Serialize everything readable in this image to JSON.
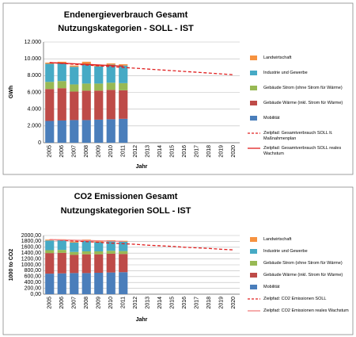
{
  "chart_data": [
    {
      "type": "bar",
      "stacked": true,
      "title": "Endenergieverbrauch Gesamt",
      "subtitle": "Nutzungskategorien - SOLL - IST",
      "y_label": "GWh",
      "x_label": "Jahr",
      "categories": [
        "2005",
        "2006",
        "2007",
        "2008",
        "2009",
        "2010",
        "2011",
        "2012",
        "2013",
        "2014",
        "2015",
        "2016",
        "2017",
        "2018",
        "2019",
        "2020"
      ],
      "ylim": [
        0,
        12000
      ],
      "yticks": [
        0,
        {
          "value": 2000,
          "label": "2.000"
        },
        {
          "value": 4000,
          "label": "4.000"
        },
        {
          "value": 6000,
          "label": "6.000"
        },
        {
          "value": 8000,
          "label": "8.000"
        },
        {
          "value": 10000,
          "label": "10.000"
        },
        {
          "value": 12000,
          "label": "12.000"
        }
      ],
      "grid": true,
      "series": [
        {
          "name": "Mobilität",
          "color": "#4a7ebb",
          "values": [
            2600,
            2650,
            2700,
            2700,
            2750,
            2800,
            2850,
            null,
            null,
            null,
            null,
            null,
            null,
            null,
            null,
            null
          ]
        },
        {
          "name": "Gebäude Wärme (inkl. Strom für Wärme)",
          "color": "#be4b48",
          "values": [
            3800,
            3850,
            3400,
            3500,
            3450,
            3500,
            3400,
            null,
            null,
            null,
            null,
            null,
            null,
            null,
            null,
            null
          ]
        },
        {
          "name": "Gebäude Strom (ohne Strom für Wärme)",
          "color": "#98b954",
          "values": [
            850,
            850,
            850,
            850,
            850,
            850,
            850,
            null,
            null,
            null,
            null,
            null,
            null,
            null,
            null,
            null
          ]
        },
        {
          "name": "Industrie und Gewerbe",
          "color": "#46aac5",
          "values": [
            2150,
            2150,
            2100,
            2350,
            2050,
            2150,
            2100,
            null,
            null,
            null,
            null,
            null,
            null,
            null,
            null,
            null
          ]
        },
        {
          "name": "Landwirtschaft",
          "color": "#f69240",
          "values": [
            150,
            150,
            150,
            250,
            150,
            150,
            150,
            null,
            null,
            null,
            null,
            null,
            null,
            null,
            null,
            null
          ]
        },
        {
          "name": "Zielpfad: Gesamtverbrauch SOLL lt. Maßnahmenplan",
          "type": "line",
          "dashed": true,
          "color": "#e02020",
          "values": [
            9550,
            9450,
            9350,
            9260,
            9160,
            9070,
            8970,
            8880,
            8780,
            8680,
            8590,
            8490,
            8400,
            8300,
            8200,
            8100
          ]
        },
        {
          "name": "Zielpfad: Gesamtverbrauch SOLL reales Wachstum",
          "type": "line",
          "dashed": false,
          "color": "#e02020",
          "values": [
            9550,
            9480,
            9410,
            9340,
            9270,
            9200,
            9130,
            null,
            null,
            null,
            null,
            null,
            null,
            null,
            null,
            null
          ]
        }
      ]
    },
    {
      "type": "bar",
      "stacked": true,
      "title": "CO2 Emissionen Gesamt",
      "subtitle": "Nutzungskategorien SOLL - IST",
      "y_label": "1000 to CO2",
      "x_label": "Jahr",
      "categories": [
        "2005",
        "2006",
        "2007",
        "2008",
        "2009",
        "2010",
        "2011",
        "2012",
        "2013",
        "2014",
        "2015",
        "2016",
        "2017",
        "2018",
        "2019",
        "2020"
      ],
      "ylim": [
        0,
        2000
      ],
      "yticks": [
        {
          "value": 0,
          "label": "0,00"
        },
        {
          "value": 200,
          "label": "200,00"
        },
        {
          "value": 400,
          "label": "400,00"
        },
        {
          "value": 600,
          "label": "600,00"
        },
        {
          "value": 800,
          "label": "800,00"
        },
        {
          "value": 1000,
          "label": "1000,00"
        },
        {
          "value": 1200,
          "label": "1200,00"
        },
        {
          "value": 1400,
          "label": "1400,00"
        },
        {
          "value": 1600,
          "label": "1600,00"
        },
        {
          "value": 1800,
          "label": "1800,00"
        },
        {
          "value": 2000,
          "label": "2000,00"
        }
      ],
      "grid": true,
      "series": [
        {
          "name": "Mobilität",
          "color": "#4a7ebb",
          "values": [
            700,
            710,
            720,
            720,
            730,
            740,
            750,
            null,
            null,
            null,
            null,
            null,
            null,
            null,
            null,
            null
          ]
        },
        {
          "name": "Gebäude Wärme (inkl. Strom für Wärme)",
          "color": "#be4b48",
          "values": [
            700,
            700,
            620,
            640,
            630,
            640,
            620,
            null,
            null,
            null,
            null,
            null,
            null,
            null,
            null,
            null
          ]
        },
        {
          "name": "Gebäude Strom (ohne Strom für Wärme)",
          "color": "#98b954",
          "values": [
            100,
            100,
            100,
            100,
            100,
            100,
            100,
            null,
            null,
            null,
            null,
            null,
            null,
            null,
            null,
            null
          ]
        },
        {
          "name": "Industrie und Gewerbe",
          "color": "#46aac5",
          "values": [
            330,
            330,
            320,
            360,
            310,
            330,
            320,
            null,
            null,
            null,
            null,
            null,
            null,
            null,
            null,
            null
          ]
        },
        {
          "name": "Landwirtschaft",
          "color": "#f69240",
          "values": [
            30,
            30,
            30,
            40,
            30,
            30,
            30,
            null,
            null,
            null,
            null,
            null,
            null,
            null,
            null,
            null
          ]
        },
        {
          "name": "Zielpfad: CO2 Emissionen SOLL",
          "type": "line",
          "dashed": true,
          "color": "#e02020",
          "values": [
            1860,
            1840,
            1810,
            1790,
            1770,
            1740,
            1720,
            1700,
            1670,
            1650,
            1630,
            1600,
            1580,
            1560,
            1530,
            1510
          ]
        },
        {
          "name": "Zielpfad: CO2 Emissionen reales Wachstum",
          "type": "line",
          "dashed": false,
          "color": "#f08080",
          "values": [
            1860,
            1850,
            1840,
            1830,
            1820,
            1810,
            1800,
            null,
            null,
            null,
            null,
            null,
            null,
            null,
            null,
            null
          ]
        }
      ]
    }
  ]
}
